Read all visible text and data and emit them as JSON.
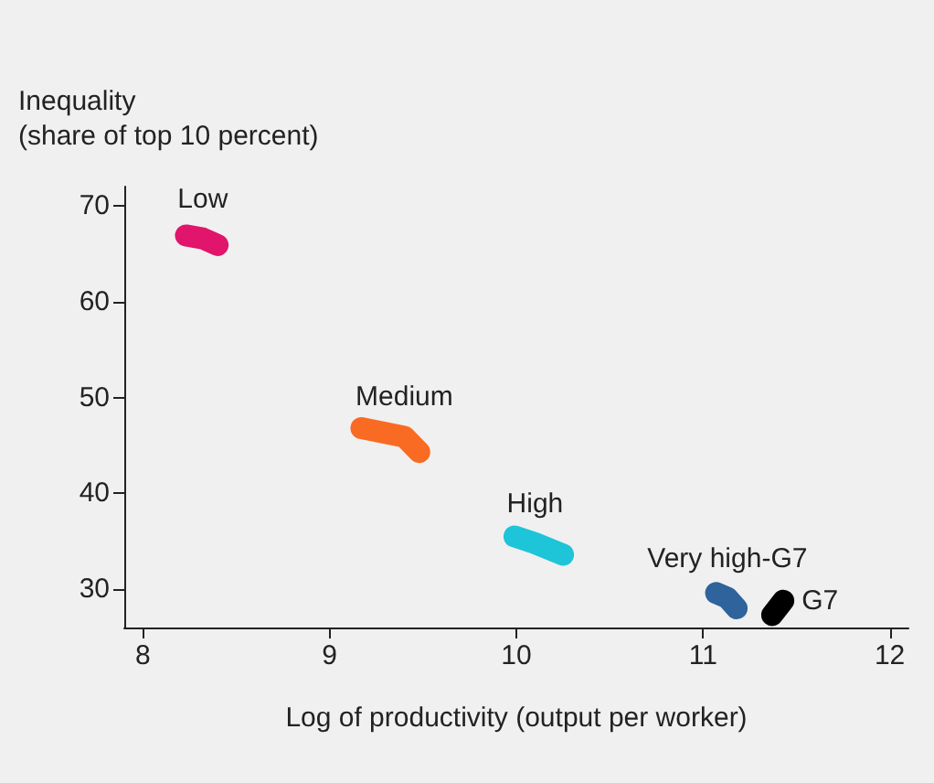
{
  "chart_data": {
    "type": "line",
    "xlabel": "Log of productivity (output per worker)",
    "ylabel": "Inequality\n(share of top 10 percent)",
    "xlim": [
      7.9,
      12.1
    ],
    "xticks": [
      8,
      9,
      10,
      11,
      12
    ],
    "ylim": [
      26,
      72
    ],
    "yticks": [
      30,
      40,
      50,
      60,
      70
    ],
    "grid": false,
    "legend": false,
    "marker": "none",
    "line_style": "solid",
    "series": [
      {
        "name": "Low",
        "color": "#e0156b",
        "x": [
          8.23,
          8.32,
          8.4
        ],
        "values": [
          66.9,
          66.6,
          65.9
        ]
      },
      {
        "name": "Medium",
        "color": "#f96b22",
        "x": [
          9.17,
          9.4,
          9.48
        ],
        "values": [
          46.8,
          45.9,
          44.3
        ]
      },
      {
        "name": "High",
        "color": "#1ec4d8",
        "x": [
          9.99,
          10.1,
          10.25
        ],
        "values": [
          35.5,
          34.8,
          33.6
        ]
      },
      {
        "name": "Very high-G7",
        "color": "#2e639c",
        "x": [
          11.07,
          11.13,
          11.18
        ],
        "values": [
          29.6,
          29.1,
          28.0
        ]
      },
      {
        "name": "G7",
        "color": "#000000",
        "x": [
          11.37,
          11.43
        ],
        "values": [
          27.3,
          28.8
        ]
      }
    ]
  }
}
